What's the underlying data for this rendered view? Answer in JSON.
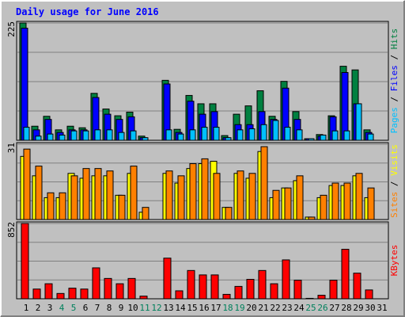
{
  "chart_data": {
    "type": "bar",
    "title": "Daily usage for June 2016",
    "categories": [
      "1",
      "2",
      "3",
      "4",
      "5",
      "6",
      "7",
      "8",
      "9",
      "10",
      "11",
      "12",
      "13",
      "14",
      "15",
      "16",
      "17",
      "18",
      "19",
      "20",
      "21",
      "22",
      "23",
      "24",
      "25",
      "26",
      "27",
      "28",
      "29",
      "30",
      "31"
    ],
    "category_colors": [
      "#000000",
      "#000000",
      "#000000",
      "#00805c",
      "#00805c",
      "#000000",
      "#000000",
      "#000000",
      "#000000",
      "#000000",
      "#00805c",
      "#00805c",
      "#000000",
      "#000000",
      "#000000",
      "#000000",
      "#000000",
      "#00805c",
      "#00805c",
      "#000000",
      "#000000",
      "#000000",
      "#000000",
      "#000000",
      "#00805c",
      "#00805c",
      "#000000",
      "#000000",
      "#000000",
      "#000000",
      "#000000"
    ],
    "legend_separator": " / ",
    "panels": [
      {
        "ylim": [
          0,
          225
        ],
        "yticks": [
          225
        ],
        "series": [
          {
            "name": "Hits",
            "color": "#008040",
            "values": [
              225,
              27,
              46,
              20,
              27,
              24,
              90,
              60,
              47,
              54,
              8,
              0,
              115,
              21,
              86,
              70,
              70,
              9,
              50,
              66,
              95,
              46,
              113,
              55,
              3,
              11,
              47,
              142,
              135,
              20,
              0
            ]
          },
          {
            "name": "Files",
            "color": "#0000ff",
            "values": [
              215,
              20,
              40,
              15,
              20,
              20,
              82,
              50,
              40,
              45,
              5,
              0,
              108,
              15,
              75,
              50,
              55,
              5,
              30,
              30,
              55,
              40,
              100,
              40,
              3,
              8,
              45,
              130,
              70,
              15,
              0
            ]
          },
          {
            "name": "Pages",
            "color": "#00c0ff",
            "values": [
              25,
              8,
              12,
              10,
              18,
              18,
              20,
              20,
              15,
              18,
              5,
              0,
              20,
              12,
              20,
              25,
              25,
              5,
              20,
              22,
              30,
              38,
              25,
              20,
              3,
              10,
              18,
              18,
              70,
              12,
              0
            ]
          }
        ]
      },
      {
        "ylim": [
          0,
          31
        ],
        "yticks": [
          31
        ],
        "series": [
          {
            "name": "Visits",
            "color": "#ffff00",
            "values": [
              26,
              18,
              9,
              9,
              19,
              17,
              18,
              18,
              10,
              19,
              3,
              0,
              19,
              15,
              21,
              23,
              24,
              5,
              19,
              17,
              28,
              9,
              13,
              16,
              1,
              9,
              14,
              14,
              18,
              9,
              0
            ]
          },
          {
            "name": "Sites",
            "color": "#ff8000",
            "values": [
              29,
              22,
              11,
              11,
              18,
              21,
              21,
              20,
              10,
              22,
              5,
              0,
              20,
              18,
              23,
              25,
              19,
              5,
              20,
              19,
              30,
              12,
              13,
              18,
              1,
              10,
              15,
              15,
              19,
              13,
              0
            ]
          }
        ]
      },
      {
        "ylim": [
          0,
          852
        ],
        "yticks": [
          852
        ],
        "series": [
          {
            "name": "KBytes",
            "color": "#ff0000",
            "values": [
              852,
              110,
              170,
              60,
              120,
              110,
              350,
              230,
              170,
              230,
              30,
              0,
              460,
              90,
              320,
              270,
              270,
              50,
              140,
              220,
              320,
              170,
              440,
              210,
              5,
              40,
              210,
              560,
              290,
              100,
              0
            ]
          }
        ]
      }
    ]
  }
}
